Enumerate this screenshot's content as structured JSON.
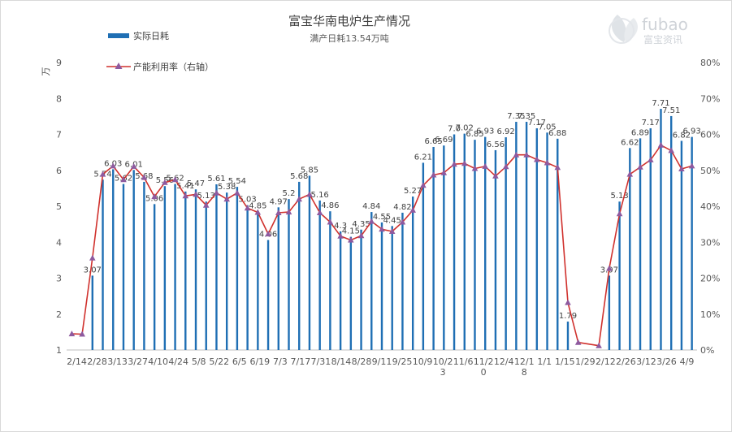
{
  "chart_data": {
    "type": "bar",
    "title": "富宝华南电炉生产情况",
    "subtitle": "满产日耗13.54万吨",
    "y_unit": "万",
    "ylim": [
      1,
      9
    ],
    "yticks": [
      "1",
      "2",
      "3",
      "4",
      "5",
      "6",
      "7",
      "8",
      "9"
    ],
    "y2lim": [
      0,
      80
    ],
    "y2ticks": [
      "0%",
      "10%",
      "20%",
      "30%",
      "40%",
      "50%",
      "60%",
      "70%",
      "80%"
    ],
    "legend_placement": "top-left",
    "bar_color": "#1f6fb4",
    "line_color": "#d0312d",
    "marker_color": "#8e5a9f",
    "x_labels": [
      [
        "2/14"
      ],
      [
        "2/28"
      ],
      [
        "3/13"
      ],
      [
        "3/27"
      ],
      [
        "4/10"
      ],
      [
        "4/24"
      ],
      [
        "5/8"
      ],
      [
        "5/22"
      ],
      [
        "6/5"
      ],
      [
        "6/19"
      ],
      [
        "7/3"
      ],
      [
        "7/17"
      ],
      [
        "7/31"
      ],
      [
        "8/14"
      ],
      [
        "8/28"
      ],
      [
        "9/11"
      ],
      [
        "9/25"
      ],
      [
        "10/9"
      ],
      [
        "10/2",
        "3"
      ],
      [
        "11/6"
      ],
      [
        "11/2",
        "0"
      ],
      [
        "12/4"
      ],
      [
        "12/1",
        "8"
      ],
      [
        "1/1"
      ],
      [
        "1/15"
      ],
      [
        "1/29"
      ],
      [
        "2/12"
      ],
      [
        "2/26"
      ],
      [
        "3/12"
      ],
      [
        "3/26"
      ],
      [
        "4/9"
      ]
    ],
    "series": [
      {
        "name": "实际日耗",
        "type": "bar",
        "values": [
          null,
          null,
          3.07,
          5.74,
          6.03,
          5.62,
          6.01,
          5.68,
          5.06,
          5.56,
          5.62,
          5.41,
          5.47,
          5.13,
          5.61,
          5.38,
          5.54,
          5.03,
          4.85,
          4.06,
          4.97,
          5.2,
          5.68,
          5.85,
          5.16,
          4.86,
          4.3,
          4.15,
          4.35,
          4.84,
          4.55,
          4.45,
          4.82,
          5.27,
          6.21,
          6.65,
          6.69,
          7.0,
          7.02,
          6.85,
          6.93,
          6.56,
          6.92,
          7.35,
          7.35,
          7.17,
          7.05,
          6.88,
          1.79,
          null,
          null,
          null,
          3.07,
          5.13,
          6.62,
          6.89,
          7.17,
          7.71,
          7.51,
          6.82,
          6.93
        ],
        "labels": [
          "",
          "",
          "3.07",
          "5.74",
          "6.03",
          "5.62",
          "6.01",
          "5.68",
          "5.06",
          "5.56",
          "5.62",
          "5.41",
          "5.47",
          "5.13",
          "5.61",
          "5.38",
          "5.54",
          "5.03",
          "4.85",
          "4.06",
          "4.97",
          "5.2",
          "5.68",
          "5.85",
          "5.16",
          "4.86",
          "4.3",
          "4.15",
          "4.35",
          "4.84",
          "4.55",
          "4.45",
          "4.82",
          "5.27",
          "6.21",
          "6.65",
          "6.69",
          "7.0",
          "7.02",
          "6.85",
          "6.93",
          "6.56",
          "6.92",
          "7.35",
          "7.35",
          "7.17",
          "7.05",
          "6.88",
          "1.79",
          "",
          "",
          "",
          "3.07",
          "5.13",
          "6.62",
          "6.89",
          "7.17",
          "7.71",
          "7.51",
          "6.82",
          "6.93"
        ]
      },
      {
        "name": "产能利用率（右轴）",
        "type": "line",
        "axis": "right",
        "values": [
          4.5,
          4.4,
          25.6,
          48.9,
          51.2,
          47.4,
          51.1,
          48.0,
          42.7,
          46.6,
          47.4,
          42.9,
          43.3,
          40.3,
          43.7,
          42.0,
          43.7,
          39.5,
          38.3,
          32.3,
          38.2,
          38.4,
          42.0,
          43.3,
          38.2,
          35.6,
          31.7,
          30.6,
          31.8,
          35.8,
          33.6,
          33.0,
          35.6,
          38.9,
          45.8,
          48.7,
          49.3,
          51.7,
          51.9,
          50.5,
          51.1,
          48.4,
          51.0,
          54.3,
          54.3,
          53.0,
          52.1,
          50.8,
          13.2,
          2.1,
          null,
          1.2,
          22.7,
          37.9,
          48.9,
          50.9,
          52.9,
          57.0,
          55.5,
          50.4,
          51.2
        ]
      }
    ]
  },
  "watermark": {
    "logo_text": "fubao",
    "sub_text": "富宝资讯"
  }
}
